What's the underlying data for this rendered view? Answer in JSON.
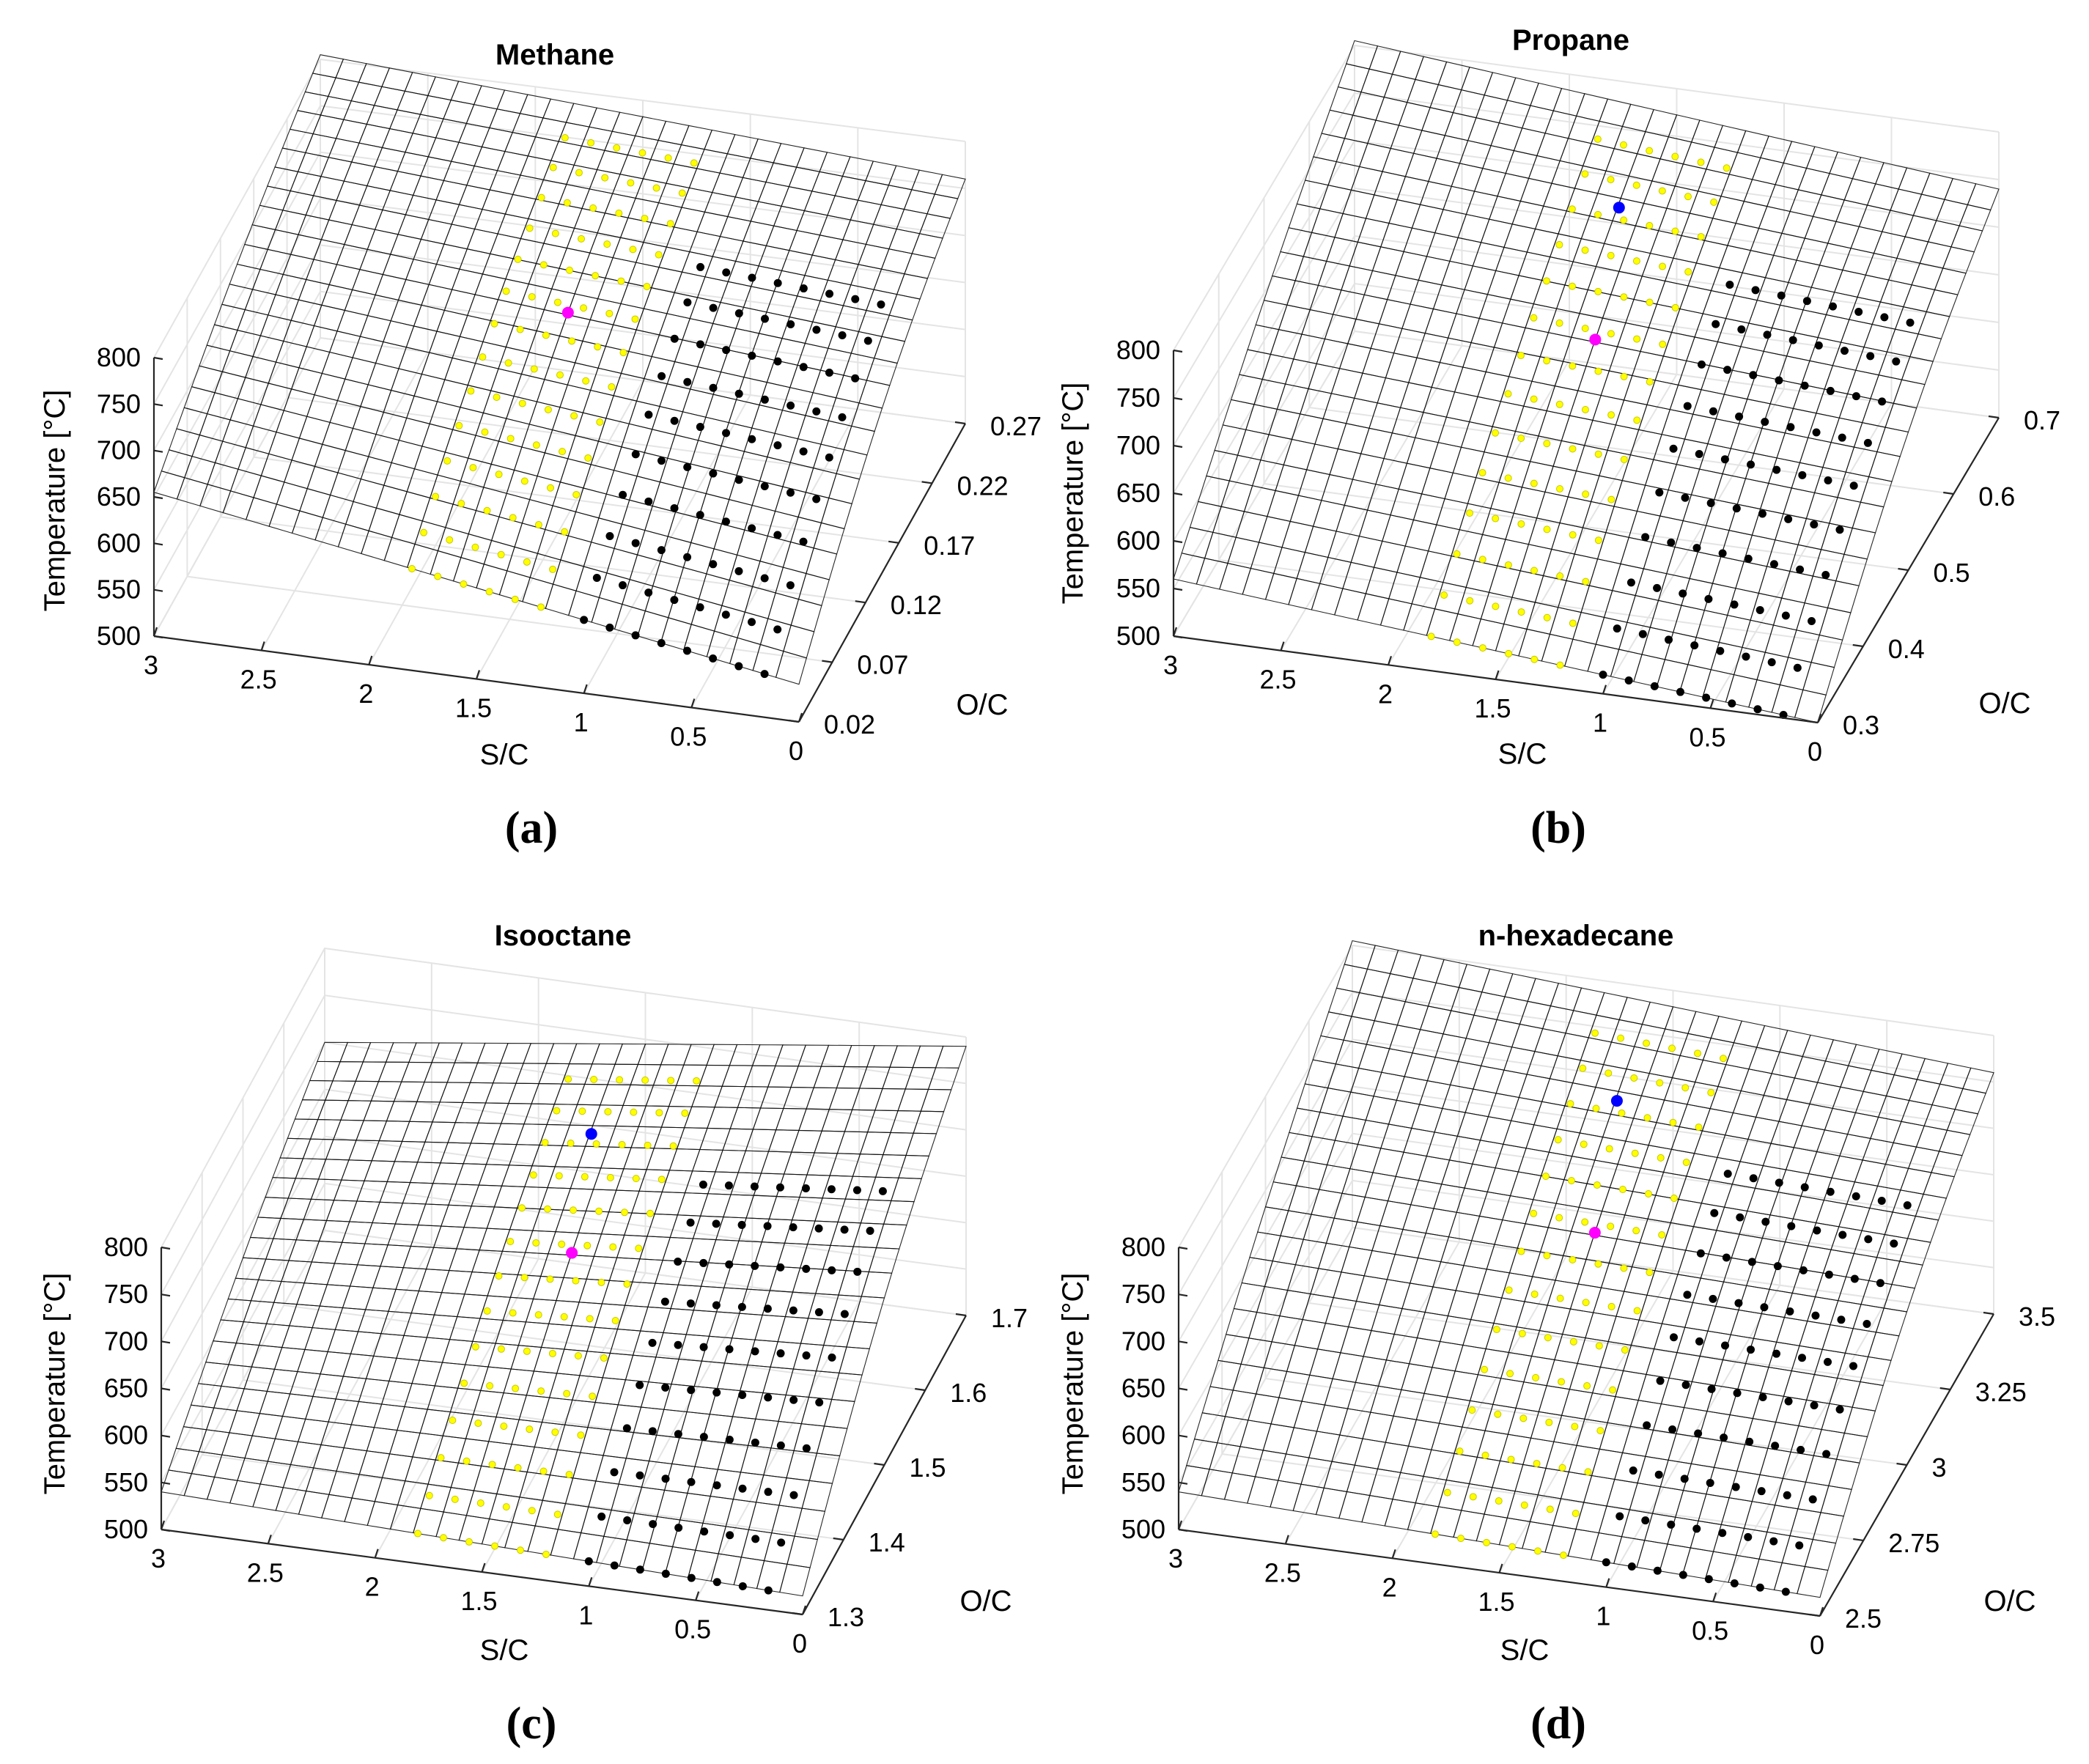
{
  "chart_data": [
    {
      "type": "surface3d",
      "title": "Methane",
      "caption": "(a)",
      "zlabel": "Temperature [°C]",
      "xlabel": "S/C",
      "ylabel": "O/C",
      "xticks": [
        "3",
        "2.5",
        "2",
        "1.5",
        "1",
        "0.5",
        "0"
      ],
      "yticks": [
        "0.02",
        "0.07",
        "0.12",
        "0.17",
        "0.22",
        "0.27"
      ],
      "zticks": [
        "500",
        "550",
        "600",
        "650",
        "700",
        "750",
        "800"
      ],
      "xlim": [
        0,
        3
      ],
      "ylim": [
        0.02,
        0.27
      ],
      "zlim": [
        500,
        800
      ],
      "surface_corner_temperatures": {
        "sc3_oc_min": 655,
        "sc0_oc_min": 540,
        "sc3_oc_max": 805,
        "sc0_oc_max": 760
      },
      "colormap": "parula",
      "markers": {
        "feasible": "yellow",
        "carbon_formation": "black",
        "optimum": "magenta"
      }
    },
    {
      "type": "surface3d",
      "title": "Propane",
      "caption": "(b)",
      "zlabel": "Temperature [°C]",
      "xlabel": "S/C",
      "ylabel": "O/C",
      "xticks": [
        "3",
        "2.5",
        "2",
        "1.5",
        "1",
        "0.5",
        "0"
      ],
      "yticks": [
        "0.3",
        "0.4",
        "0.5",
        "0.6",
        "0.7"
      ],
      "zticks": [
        "500",
        "550",
        "600",
        "650",
        "700",
        "750",
        "800"
      ],
      "xlim": [
        0,
        3
      ],
      "ylim": [
        0.3,
        0.7
      ],
      "zlim": [
        500,
        800
      ],
      "surface_corner_temperatures": {
        "sc3_oc_min": 560,
        "sc0_oc_min": 500,
        "sc3_oc_max": 805,
        "sc0_oc_max": 740
      },
      "colormap": "parula",
      "markers": {
        "feasible": "yellow",
        "carbon_formation": "black",
        "optimum": "magenta",
        "alternative": "blue"
      }
    },
    {
      "type": "surface3d",
      "title": "Isooctane",
      "caption": "(c)",
      "zlabel": "Temperature [°C]",
      "xlabel": "S/C",
      "ylabel": "O/C",
      "xticks": [
        "3",
        "2.5",
        "2",
        "1.5",
        "1",
        "0.5",
        "0"
      ],
      "yticks": [
        "1.3",
        "1.4",
        "1.5",
        "1.6",
        "1.7"
      ],
      "zticks": [
        "500",
        "550",
        "600",
        "650",
        "700",
        "750",
        "800"
      ],
      "xlim": [
        0,
        3
      ],
      "ylim": [
        1.3,
        1.7
      ],
      "zlim": [
        500,
        800
      ],
      "surface_corner_temperatures": {
        "sc3_oc_min": 540,
        "sc0_oc_min": 520,
        "sc3_oc_max": 700,
        "sc0_oc_max": 790
      },
      "colormap": "parula",
      "markers": {
        "feasible": "yellow",
        "carbon_formation": "black",
        "optimum": "magenta",
        "alternative": "blue"
      }
    },
    {
      "type": "surface3d",
      "title": "n-hexadecane",
      "caption": "(d)",
      "zlabel": "Temperature [°C]",
      "xlabel": "S/C",
      "ylabel": "O/C",
      "xticks": [
        "3",
        "2.5",
        "2",
        "1.5",
        "1",
        "0.5",
        "0"
      ],
      "yticks": [
        "2.5",
        "2.75",
        "3",
        "3.25",
        "3.5"
      ],
      "zticks": [
        "500",
        "550",
        "600",
        "650",
        "700",
        "750",
        "800"
      ],
      "xlim": [
        0,
        3
      ],
      "ylim": [
        2.5,
        3.5
      ],
      "zlim": [
        500,
        800
      ],
      "surface_corner_temperatures": {
        "sc3_oc_min": 540,
        "sc0_oc_min": 520,
        "sc3_oc_max": 805,
        "sc0_oc_max": 760
      },
      "colormap": "parula",
      "markers": {
        "feasible": "yellow",
        "carbon_formation": "black",
        "optimum": "magenta",
        "alternative": "blue"
      }
    }
  ]
}
